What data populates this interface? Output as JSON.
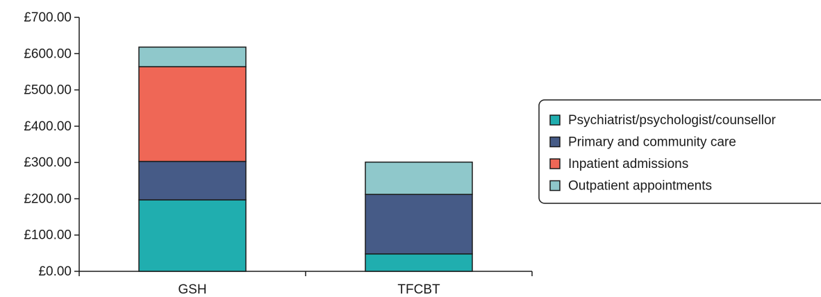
{
  "chart_data": {
    "type": "bar",
    "stacked": true,
    "categories": [
      "GSH",
      "TFCBT"
    ],
    "series": [
      {
        "name": "Psychiatrist/psychologist/counsellor",
        "color": "#20AEAF",
        "values": [
          197,
          48
        ]
      },
      {
        "name": "Primary and community care",
        "color": "#465B87",
        "values": [
          106,
          164
        ]
      },
      {
        "name": "Inpatient admissions",
        "color": "#EF6756",
        "values": [
          261,
          0
        ]
      },
      {
        "name": "Outpatient appointments",
        "color": "#8FC8CB",
        "values": [
          54,
          89
        ]
      }
    ],
    "yticks": [
      "£0.00",
      "£100.00",
      "£200.00",
      "£300.00",
      "£400.00",
      "£500.00",
      "£600.00",
      "£700.00"
    ],
    "ylim": [
      0,
      700
    ],
    "ytick_step": 100,
    "legend_position": "right",
    "grid": false
  }
}
